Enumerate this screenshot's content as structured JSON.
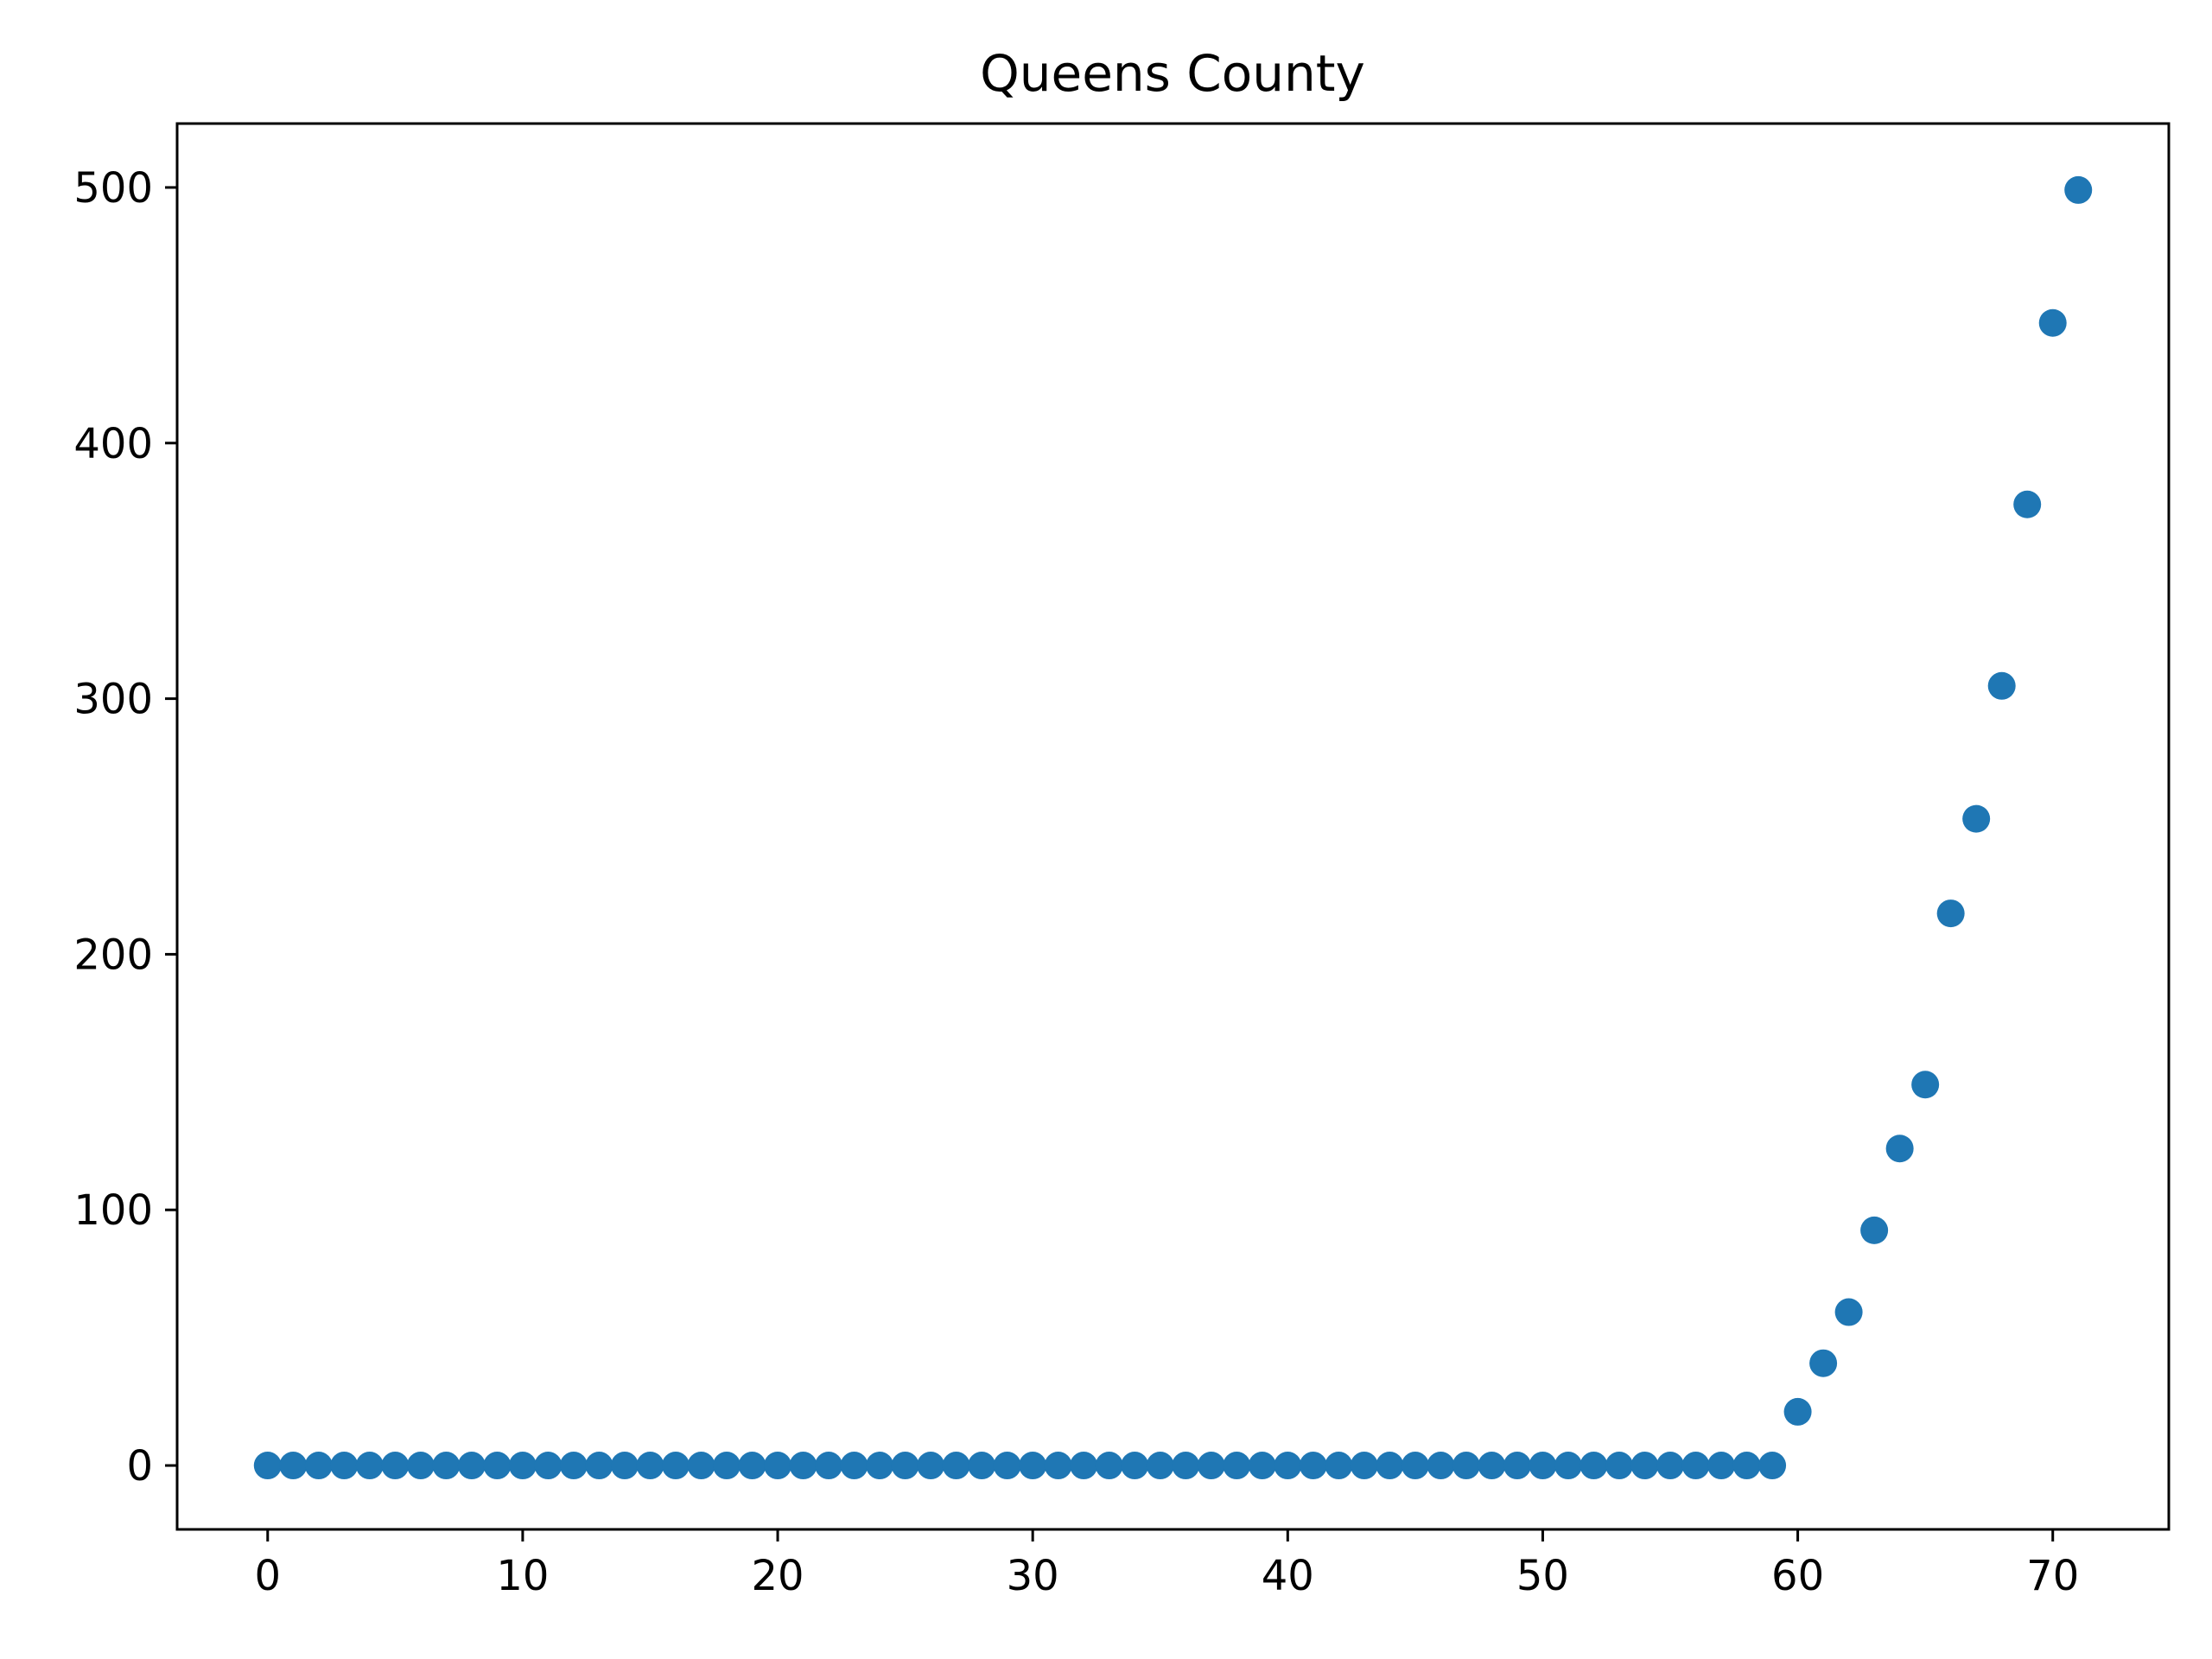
{
  "chart_data": {
    "type": "scatter",
    "title": "Queens County",
    "xlabel": "",
    "ylabel": "",
    "xlim": [
      -3.55,
      74.55
    ],
    "ylim": [
      -25,
      525
    ],
    "xticks": [
      0,
      10,
      20,
      30,
      40,
      50,
      60,
      70
    ],
    "yticks": [
      0,
      100,
      200,
      300,
      400,
      500
    ],
    "grid": false,
    "legend": "none",
    "marker_color": "#1f77b4",
    "series": [
      {
        "x": [
          0,
          1,
          2,
          3,
          4,
          5,
          6,
          7,
          8,
          9,
          10,
          11,
          12,
          13,
          14,
          15,
          16,
          17,
          18,
          19,
          20,
          21,
          22,
          23,
          24,
          25,
          26,
          27,
          28,
          29,
          30,
          31,
          32,
          33,
          34,
          35,
          36,
          37,
          38,
          39,
          40,
          41,
          42,
          43,
          44,
          45,
          46,
          47,
          48,
          49,
          50,
          51,
          52,
          53,
          54,
          55,
          56,
          57,
          58,
          59,
          60,
          61,
          62,
          63,
          64,
          65,
          66,
          67,
          68,
          69,
          70,
          71
        ],
        "values": [
          0,
          0,
          0,
          0,
          0,
          0,
          0,
          0,
          0,
          0,
          0,
          0,
          0,
          0,
          0,
          0,
          0,
          0,
          0,
          0,
          0,
          0,
          0,
          0,
          0,
          0,
          0,
          0,
          0,
          0,
          0,
          0,
          0,
          0,
          0,
          0,
          0,
          0,
          0,
          0,
          0,
          0,
          0,
          0,
          0,
          0,
          0,
          0,
          0,
          0,
          0,
          0,
          0,
          0,
          0,
          0,
          0,
          0,
          0,
          0,
          21,
          40,
          60,
          92,
          124,
          149,
          216,
          253,
          305,
          376,
          447,
          499
        ]
      }
    ]
  }
}
